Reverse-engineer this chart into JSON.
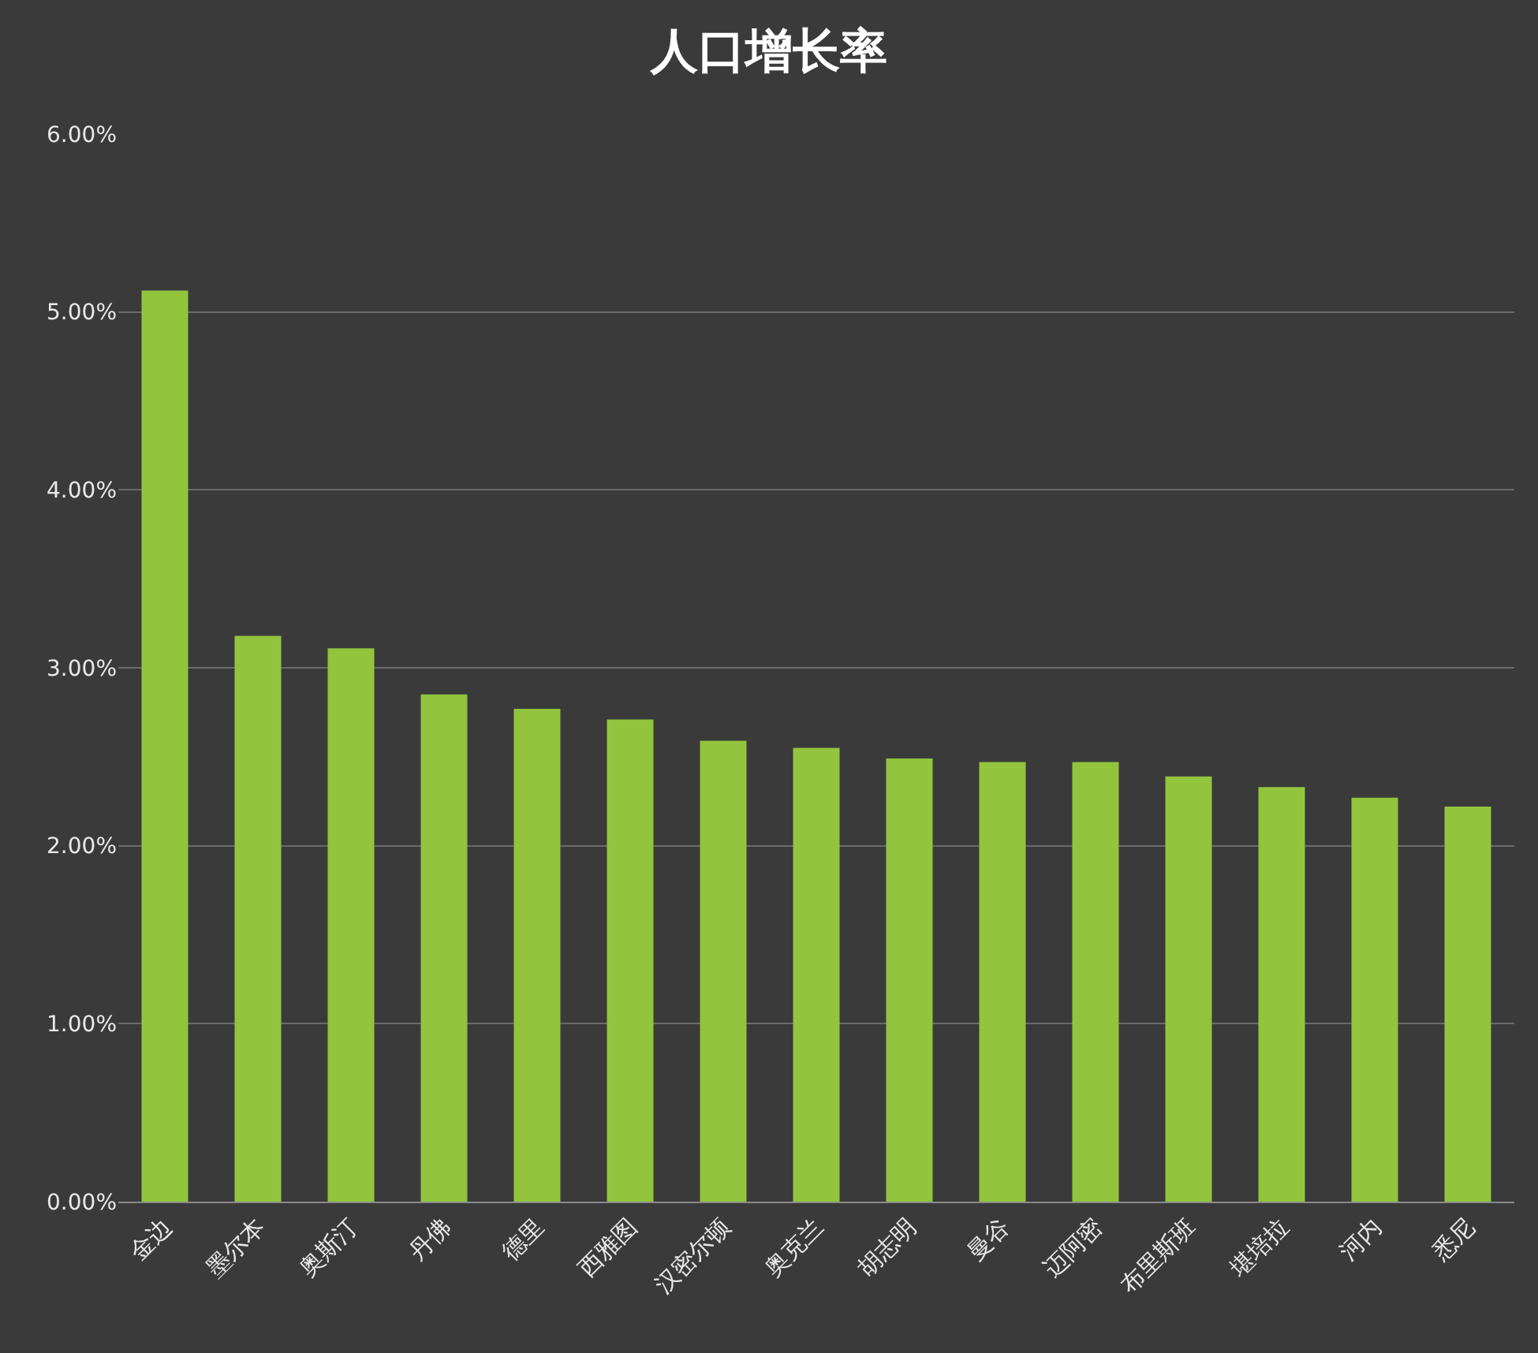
{
  "chart_data": {
    "type": "bar",
    "title": "人口增长率",
    "categories": [
      "金边",
      "墨尔本",
      "奥斯汀",
      "丹佛",
      "德里",
      "西雅图",
      "汉密尔顿",
      "奥克兰",
      "胡志明",
      "曼谷",
      "迈阿密",
      "布里斯班",
      "堪培拉",
      "河内",
      "悉尼"
    ],
    "values": [
      5.12,
      3.18,
      3.11,
      2.85,
      2.77,
      2.71,
      2.59,
      2.55,
      2.49,
      2.47,
      2.47,
      2.39,
      2.33,
      2.27,
      2.22
    ],
    "color": "#92c43e",
    "ylim": [
      0,
      6
    ],
    "yticks": [
      {
        "value": 0,
        "label": "0.00%"
      },
      {
        "value": 1,
        "label": "1.00%"
      },
      {
        "value": 2,
        "label": "2.00%"
      },
      {
        "value": 3,
        "label": "3.00%"
      },
      {
        "value": 4,
        "label": "4.00%"
      },
      {
        "value": 5,
        "label": "5.00%"
      },
      {
        "value": 6,
        "label": "6.00%"
      }
    ],
    "grid": "y"
  }
}
